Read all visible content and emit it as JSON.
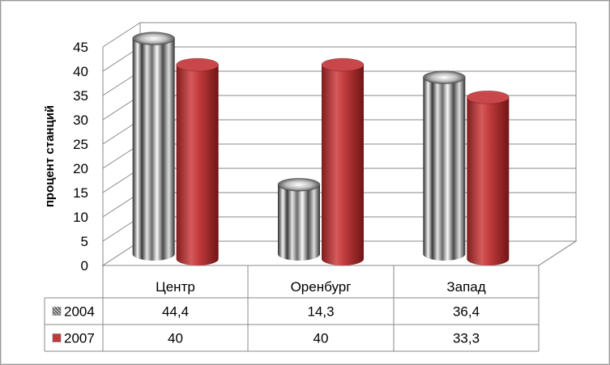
{
  "chart_data": {
    "type": "bar",
    "title": "",
    "xlabel": "",
    "ylabel": "процент станций",
    "ylim": [
      0,
      45
    ],
    "yticks": [
      0,
      5,
      10,
      15,
      20,
      25,
      30,
      35,
      40,
      45
    ],
    "categories": [
      "Центр",
      "Оренбург",
      "Запад"
    ],
    "series": [
      {
        "name": "2004",
        "values": [
          44.4,
          14.3,
          36.4
        ],
        "value_labels": [
          "44,4",
          "14,3",
          "36,4"
        ],
        "color": "#b5b5b5"
      },
      {
        "name": "2007",
        "values": [
          40,
          40,
          33.3
        ],
        "value_labels": [
          "40",
          "40",
          "33,3"
        ],
        "color": "#c0393b"
      }
    ],
    "grid": true,
    "style": "3d-cylinder",
    "data_table": true
  }
}
